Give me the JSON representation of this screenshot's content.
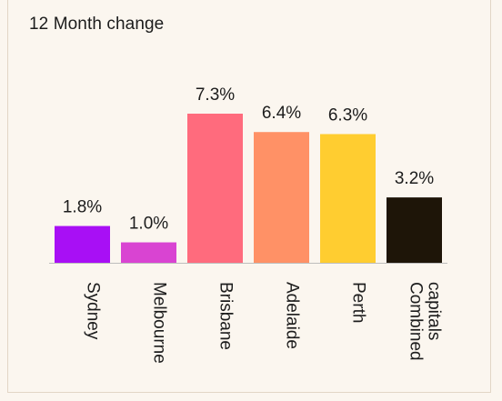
{
  "chart_data": {
    "type": "bar",
    "title": "12 Month change",
    "categories": [
      "Sydney",
      "Melbourne",
      "Brisbane",
      "Adelaide",
      "Perth",
      "Combined capitals"
    ],
    "category_lines": [
      [
        "Sydney"
      ],
      [
        "Melbourne"
      ],
      [
        "Brisbane"
      ],
      [
        "Adelaide"
      ],
      [
        "Perth"
      ],
      [
        "Combined",
        "capitals"
      ]
    ],
    "values": [
      1.8,
      1.0,
      7.3,
      6.4,
      6.3,
      3.2
    ],
    "value_labels": [
      "1.8%",
      "1.0%",
      "7.3%",
      "6.4%",
      "6.3%",
      "3.2%"
    ],
    "colors": [
      "#a80ff5",
      "#d944d2",
      "#ff6b7d",
      "#ff9166",
      "#ffcd30",
      "#1e1508"
    ],
    "axis_color": "#bdbdbd",
    "ylim": [
      0,
      7.3
    ],
    "grid": false,
    "legend": "none"
  }
}
